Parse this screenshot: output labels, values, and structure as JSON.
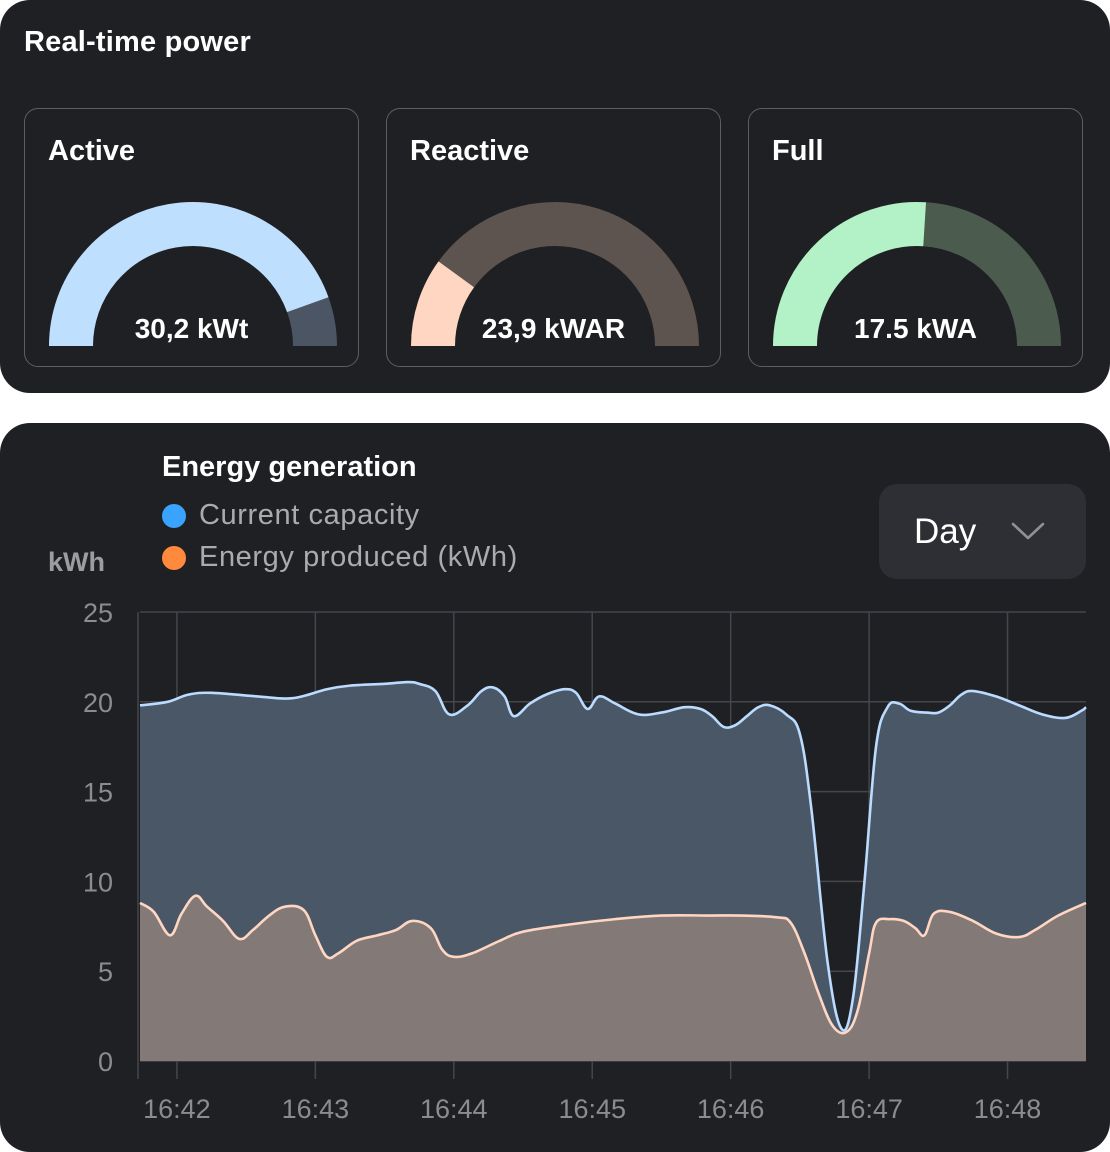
{
  "power": {
    "title": "Real-time power",
    "gauges": [
      {
        "label": "Active",
        "value": "30,2 kWt",
        "fraction": 0.89,
        "fill_color": "#bfdfff",
        "track_color": "#4b5563"
      },
      {
        "label": "Reactive",
        "value": "23,9 kWAR",
        "fraction": 0.2,
        "fill_color": "#ffd6c2",
        "track_color": "#5e544f"
      },
      {
        "label": "Full",
        "value": "17.5 kWA",
        "fraction": 0.52,
        "fill_color": "#b3f2c6",
        "track_color": "#4b5c4f"
      }
    ]
  },
  "energy": {
    "title": "Energy generation",
    "period_select": {
      "value": "Day"
    },
    "chart_data": {
      "type": "area",
      "title": "Energy generation",
      "ylabel": "kWh",
      "xlabel": "",
      "ylim": [
        0,
        25
      ],
      "yticks": [
        0,
        5,
        10,
        15,
        20,
        25
      ],
      "xticks": [
        "16:42",
        "16:43",
        "16:44",
        "16:45",
        "16:46",
        "16:47",
        "16:48"
      ],
      "grid": true,
      "legend": "top-left",
      "series": [
        {
          "name": "Current capacity",
          "legend_color": "#3aa2ff",
          "line_color": "#bcdcff",
          "fill_color": "#4a5767",
          "points": [
            [
              "16:41:44",
              19.8
            ],
            [
              "16:41:56",
              20.0
            ],
            [
              "16:42:05",
              20.4
            ],
            [
              "16:42:15",
              20.5
            ],
            [
              "16:42:35",
              20.3
            ],
            [
              "16:42:50",
              20.2
            ],
            [
              "16:43:05",
              20.7
            ],
            [
              "16:43:15",
              20.9
            ],
            [
              "16:43:30",
              21.0
            ],
            [
              "16:43:40",
              21.1
            ],
            [
              "16:43:45",
              21.0
            ],
            [
              "16:43:52",
              20.6
            ],
            [
              "16:43:58",
              19.3
            ],
            [
              "16:44:06",
              19.8
            ],
            [
              "16:44:12",
              20.6
            ],
            [
              "16:44:17",
              20.8
            ],
            [
              "16:44:22",
              20.3
            ],
            [
              "16:44:26",
              19.2
            ],
            [
              "16:44:33",
              19.9
            ],
            [
              "16:44:40",
              20.4
            ],
            [
              "16:44:48",
              20.7
            ],
            [
              "16:44:53",
              20.5
            ],
            [
              "16:44:58",
              19.6
            ],
            [
              "16:45:03",
              20.3
            ],
            [
              "16:45:10",
              19.9
            ],
            [
              "16:45:20",
              19.3
            ],
            [
              "16:45:30",
              19.4
            ],
            [
              "16:45:40",
              19.7
            ],
            [
              "16:45:47",
              19.6
            ],
            [
              "16:45:52",
              19.2
            ],
            [
              "16:45:57",
              18.6
            ],
            [
              "16:46:02",
              18.7
            ],
            [
              "16:46:07",
              19.2
            ],
            [
              "16:46:12",
              19.7
            ],
            [
              "16:46:17",
              19.8
            ],
            [
              "16:46:24",
              19.3
            ],
            [
              "16:46:30",
              18.2
            ],
            [
              "16:46:35",
              14.0
            ],
            [
              "16:46:42",
              5.5
            ],
            [
              "16:46:48",
              1.8
            ],
            [
              "16:46:53",
              3.5
            ],
            [
              "16:46:58",
              10.0
            ],
            [
              "16:47:03",
              17.5
            ],
            [
              "16:47:08",
              19.7
            ],
            [
              "16:47:13",
              19.9
            ],
            [
              "16:47:18",
              19.5
            ],
            [
              "16:47:25",
              19.4
            ],
            [
              "16:47:30",
              19.4
            ],
            [
              "16:47:35",
              19.8
            ],
            [
              "16:47:40",
              20.4
            ],
            [
              "16:47:45",
              20.6
            ],
            [
              "16:47:55",
              20.3
            ],
            [
              "16:48:05",
              19.8
            ],
            [
              "16:48:15",
              19.3
            ],
            [
              "16:48:25",
              19.1
            ],
            [
              "16:48:32",
              19.5
            ],
            [
              "16:48:34",
              19.7
            ]
          ]
        },
        {
          "name": "Energy produced (kWh)",
          "legend_color": "#ff8a3d",
          "line_color": "#ffd6c2",
          "fill_color": "#837a77",
          "points": [
            [
              "16:41:44",
              8.8
            ],
            [
              "16:41:50",
              8.3
            ],
            [
              "16:41:57",
              7.0
            ],
            [
              "16:42:02",
              8.2
            ],
            [
              "16:42:08",
              9.2
            ],
            [
              "16:42:13",
              8.6
            ],
            [
              "16:42:20",
              7.8
            ],
            [
              "16:42:27",
              6.8
            ],
            [
              "16:42:33",
              7.3
            ],
            [
              "16:42:40",
              8.1
            ],
            [
              "16:42:47",
              8.6
            ],
            [
              "16:42:55",
              8.4
            ],
            [
              "16:43:00",
              7.0
            ],
            [
              "16:43:05",
              5.8
            ],
            [
              "16:43:10",
              6.0
            ],
            [
              "16:43:18",
              6.7
            ],
            [
              "16:43:27",
              7.0
            ],
            [
              "16:43:35",
              7.3
            ],
            [
              "16:43:42",
              7.8
            ],
            [
              "16:43:50",
              7.4
            ],
            [
              "16:43:55",
              6.2
            ],
            [
              "16:44:00",
              5.8
            ],
            [
              "16:44:08",
              6.0
            ],
            [
              "16:44:20",
              6.7
            ],
            [
              "16:44:30",
              7.2
            ],
            [
              "16:44:50",
              7.6
            ],
            [
              "16:45:10",
              7.9
            ],
            [
              "16:45:30",
              8.1
            ],
            [
              "16:45:50",
              8.1
            ],
            [
              "16:46:05",
              8.1
            ],
            [
              "16:46:20",
              8.0
            ],
            [
              "16:46:26",
              7.7
            ],
            [
              "16:46:32",
              6.0
            ],
            [
              "16:46:38",
              3.8
            ],
            [
              "16:46:44",
              2.0
            ],
            [
              "16:46:50",
              1.6
            ],
            [
              "16:46:55",
              2.8
            ],
            [
              "16:47:00",
              6.0
            ],
            [
              "16:47:03",
              7.7
            ],
            [
              "16:47:09",
              7.9
            ],
            [
              "16:47:15",
              7.8
            ],
            [
              "16:47:20",
              7.4
            ],
            [
              "16:47:24",
              7.0
            ],
            [
              "16:47:28",
              8.2
            ],
            [
              "16:47:35",
              8.3
            ],
            [
              "16:47:45",
              7.8
            ],
            [
              "16:47:55",
              7.1
            ],
            [
              "16:48:05",
              6.9
            ],
            [
              "16:48:12",
              7.3
            ],
            [
              "16:48:22",
              8.1
            ],
            [
              "16:48:34",
              8.8
            ]
          ]
        }
      ]
    }
  }
}
